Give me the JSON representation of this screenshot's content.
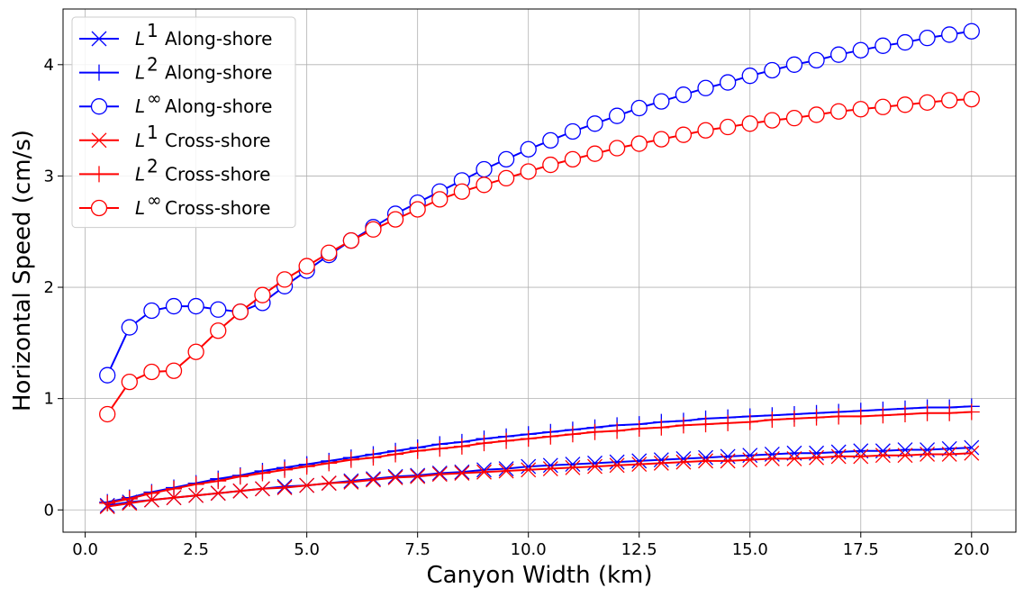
{
  "chart_data": {
    "type": "line",
    "title": "",
    "xlabel": "Canyon Width (km)",
    "ylabel": "Horizontal Speed (cm/s)",
    "xlim": [
      -0.5,
      21.0
    ],
    "ylim": [
      -0.2,
      4.5
    ],
    "xticks": [
      "0.0",
      "2.5",
      "5.0",
      "7.5",
      "10.0",
      "12.5",
      "15.0",
      "17.5",
      "20.0"
    ],
    "yticks": [
      "0",
      "1",
      "2",
      "3",
      "4"
    ],
    "grid": true,
    "legend_position": "upper-left",
    "x": [
      0.5,
      1.0,
      1.5,
      2.0,
      2.5,
      3.0,
      3.5,
      4.0,
      4.5,
      5.0,
      5.5,
      6.0,
      6.5,
      7.0,
      7.5,
      8.0,
      8.5,
      9.0,
      9.5,
      10.0,
      10.5,
      11.0,
      11.5,
      12.0,
      12.5,
      13.0,
      13.5,
      14.0,
      14.5,
      15.0,
      15.5,
      16.0,
      16.5,
      17.0,
      17.5,
      18.0,
      18.5,
      19.0,
      19.5,
      20.0
    ],
    "series": [
      {
        "name": "Along-shore",
        "sup": "1",
        "color": "#0000ff",
        "marker": "x",
        "values": [
          0.04,
          0.07,
          0.09,
          0.11,
          0.13,
          0.15,
          0.17,
          0.19,
          0.21,
          0.22,
          0.24,
          0.26,
          0.28,
          0.3,
          0.31,
          0.33,
          0.34,
          0.36,
          0.37,
          0.39,
          0.4,
          0.41,
          0.42,
          0.43,
          0.44,
          0.45,
          0.46,
          0.47,
          0.48,
          0.49,
          0.5,
          0.51,
          0.51,
          0.52,
          0.53,
          0.53,
          0.54,
          0.54,
          0.55,
          0.56
        ]
      },
      {
        "name": "Along-shore",
        "sup": "2",
        "color": "#0000ff",
        "marker": "+",
        "values": [
          0.07,
          0.11,
          0.16,
          0.2,
          0.24,
          0.28,
          0.31,
          0.35,
          0.38,
          0.41,
          0.44,
          0.47,
          0.5,
          0.53,
          0.56,
          0.59,
          0.61,
          0.64,
          0.66,
          0.68,
          0.7,
          0.72,
          0.74,
          0.76,
          0.77,
          0.79,
          0.8,
          0.82,
          0.83,
          0.84,
          0.85,
          0.86,
          0.87,
          0.88,
          0.89,
          0.9,
          0.91,
          0.92,
          0.92,
          0.93
        ]
      },
      {
        "name": "Along-shore",
        "sup": "∞",
        "color": "#0000ff",
        "marker": "o",
        "values": [
          1.21,
          1.64,
          1.79,
          1.83,
          1.83,
          1.8,
          1.78,
          1.86,
          2.01,
          2.15,
          2.29,
          2.42,
          2.54,
          2.66,
          2.76,
          2.86,
          2.96,
          3.06,
          3.15,
          3.24,
          3.32,
          3.4,
          3.47,
          3.54,
          3.61,
          3.67,
          3.73,
          3.79,
          3.84,
          3.9,
          3.95,
          4.0,
          4.04,
          4.09,
          4.13,
          4.17,
          4.2,
          4.24,
          4.27,
          4.3
        ]
      },
      {
        "name": "Cross-shore",
        "sup": "1",
        "color": "#ff0000",
        "marker": "x",
        "values": [
          0.03,
          0.06,
          0.09,
          0.11,
          0.13,
          0.15,
          0.17,
          0.19,
          0.2,
          0.22,
          0.24,
          0.25,
          0.27,
          0.29,
          0.3,
          0.32,
          0.33,
          0.34,
          0.35,
          0.36,
          0.37,
          0.38,
          0.39,
          0.4,
          0.41,
          0.42,
          0.43,
          0.44,
          0.44,
          0.45,
          0.46,
          0.46,
          0.47,
          0.48,
          0.48,
          0.49,
          0.49,
          0.5,
          0.5,
          0.51
        ]
      },
      {
        "name": "Cross-shore",
        "sup": "2",
        "color": "#ff0000",
        "marker": "+",
        "values": [
          0.06,
          0.1,
          0.15,
          0.19,
          0.23,
          0.26,
          0.3,
          0.33,
          0.36,
          0.39,
          0.42,
          0.45,
          0.47,
          0.5,
          0.53,
          0.55,
          0.57,
          0.6,
          0.62,
          0.64,
          0.66,
          0.68,
          0.7,
          0.71,
          0.73,
          0.74,
          0.76,
          0.77,
          0.78,
          0.79,
          0.81,
          0.82,
          0.83,
          0.84,
          0.84,
          0.85,
          0.86,
          0.87,
          0.87,
          0.88
        ]
      },
      {
        "name": "Cross-shore",
        "sup": "∞",
        "color": "#ff0000",
        "marker": "o",
        "values": [
          0.86,
          1.15,
          1.24,
          1.25,
          1.42,
          1.61,
          1.78,
          1.93,
          2.07,
          2.19,
          2.31,
          2.42,
          2.52,
          2.61,
          2.7,
          2.79,
          2.86,
          2.92,
          2.98,
          3.04,
          3.1,
          3.15,
          3.2,
          3.25,
          3.29,
          3.33,
          3.37,
          3.41,
          3.44,
          3.47,
          3.5,
          3.52,
          3.55,
          3.58,
          3.6,
          3.62,
          3.64,
          3.66,
          3.68,
          3.69
        ]
      }
    ]
  }
}
